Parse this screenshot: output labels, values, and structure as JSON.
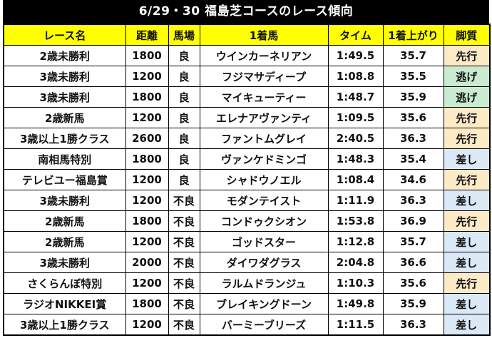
{
  "title": "6/29・30 福島芝コースのレース傾向",
  "columns": [
    "レース名",
    "距離",
    "馬場",
    "1着馬",
    "タイム",
    "1着上がり",
    "脚質"
  ],
  "colors": {
    "title_bg": "#000000",
    "header_bg": "#ffff00",
    "先行": "#fdebc8",
    "逃げ": "#c9ebd1",
    "差し": "#dbe8f6"
  },
  "rows": [
    {
      "race": "2歳未勝利",
      "distance": "1800",
      "going": "良",
      "winner": "ウインカーネリアン",
      "time": "1:49.5",
      "last3f": "35.7",
      "style": "先行",
      "style_key": "senko"
    },
    {
      "race": "3歳未勝利",
      "distance": "1200",
      "going": "良",
      "winner": "フジマサディープ",
      "time": "1:08.8",
      "last3f": "35.5",
      "style": "逃げ",
      "style_key": "nige"
    },
    {
      "race": "3歳未勝利",
      "distance": "1800",
      "going": "良",
      "winner": "マイキューティー",
      "time": "1:48.7",
      "last3f": "35.9",
      "style": "逃げ",
      "style_key": "nige"
    },
    {
      "race": "2歳新馬",
      "distance": "1200",
      "going": "良",
      "winner": "エレナアヴァンティ",
      "time": "1:09.5",
      "last3f": "35.6",
      "style": "先行",
      "style_key": "senko"
    },
    {
      "race": "3歳以上1勝クラス",
      "distance": "2600",
      "going": "良",
      "winner": "ファントムグレイ",
      "time": "2:40.5",
      "last3f": "36.3",
      "style": "先行",
      "style_key": "senko"
    },
    {
      "race": "南相馬特別",
      "distance": "1800",
      "going": "良",
      "winner": "ヴァンケドミンゴ",
      "time": "1:48.3",
      "last3f": "35.4",
      "style": "差し",
      "style_key": "sashi"
    },
    {
      "race": "テレビユー福島賞",
      "distance": "1200",
      "going": "良",
      "winner": "シャドウノエル",
      "time": "1:08.4",
      "last3f": "34.6",
      "style": "先行",
      "style_key": "senko"
    },
    {
      "race": "3歳未勝利",
      "distance": "1200",
      "going": "不良",
      "winner": "モダンテイスト",
      "time": "1:11.9",
      "last3f": "36.3",
      "style": "差し",
      "style_key": "sashi"
    },
    {
      "race": "2歳新馬",
      "distance": "1800",
      "going": "不良",
      "winner": "コンドゥクシオン",
      "time": "1:53.8",
      "last3f": "36.9",
      "style": "先行",
      "style_key": "senko"
    },
    {
      "race": "2歳新馬",
      "distance": "1200",
      "going": "不良",
      "winner": "ゴッドスター",
      "time": "1:12.8",
      "last3f": "35.7",
      "style": "差し",
      "style_key": "sashi"
    },
    {
      "race": "3歳未勝利",
      "distance": "2000",
      "going": "不良",
      "winner": "ダイワダグラス",
      "time": "2:04.8",
      "last3f": "36.6",
      "style": "差し",
      "style_key": "sashi"
    },
    {
      "race": "さくらんぼ特別",
      "distance": "1200",
      "going": "不良",
      "winner": "ラルムドランジュ",
      "time": "1:10.3",
      "last3f": "35.6",
      "style": "先行",
      "style_key": "senko"
    },
    {
      "race": "ラジオNIKKEI賞",
      "distance": "1800",
      "going": "不良",
      "winner": "ブレイキングドーン",
      "time": "1:49.8",
      "last3f": "35.9",
      "style": "差し",
      "style_key": "sashi"
    },
    {
      "race": "3歳以上1勝クラス",
      "distance": "1200",
      "going": "不良",
      "winner": "バーミーブリーズ",
      "time": "1:11.5",
      "last3f": "36.3",
      "style": "差し",
      "style_key": "sashi"
    }
  ]
}
